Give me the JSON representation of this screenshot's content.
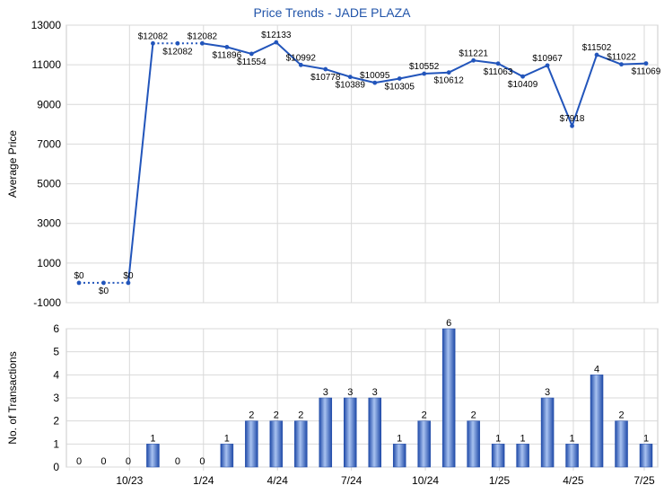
{
  "chart_data": [
    {
      "type": "line",
      "title": "Price Trends - JADE PLAZA",
      "ylabel": "Average Price",
      "ylim": [
        -1000,
        13000
      ],
      "yticks": [
        "13000",
        "11000",
        "9000",
        "7000",
        "5000",
        "3000",
        "1000",
        "-1000"
      ],
      "grid": true,
      "series": [
        {
          "values": [
            0,
            0,
            0,
            12082,
            12082,
            12082,
            11896,
            11554,
            12133,
            10992,
            10778,
            10389,
            10095,
            10305,
            10552,
            10612,
            11221,
            11063,
            10409,
            10967,
            7918,
            11502,
            11022,
            11069
          ],
          "labels": [
            "$0",
            "$0",
            "$0",
            "$12082",
            "$12082",
            "$12082",
            "$11896",
            "$11554",
            "$12133",
            "$10992",
            "$10778",
            "$10389",
            "$10095",
            "$10305",
            "$10552",
            "$10612",
            "$11221",
            "$11063",
            "$10409",
            "$10967",
            "$7918",
            "$11502",
            "$11022",
            "$11069"
          ]
        }
      ]
    },
    {
      "type": "bar",
      "ylabel": "No. of Transactions",
      "ylim": [
        0,
        6
      ],
      "yticks": [
        "0",
        "1",
        "2",
        "3",
        "4",
        "5",
        "6"
      ],
      "xticks": [
        "10/23",
        "1/24",
        "4/24",
        "7/24",
        "10/24",
        "1/25",
        "4/25",
        "7/25"
      ],
      "values": [
        0,
        0,
        0,
        1,
        0,
        0,
        1,
        2,
        2,
        2,
        3,
        3,
        3,
        1,
        2,
        6,
        2,
        1,
        1,
        3,
        1,
        4,
        2,
        1
      ],
      "color": "#3a66c4"
    }
  ],
  "colors": {
    "line": "#2255bb",
    "bar_dark": "#1f4aa8",
    "bar_light": "#8fb0ea",
    "grid": "#d9d9d9",
    "title": "#2255aa"
  }
}
